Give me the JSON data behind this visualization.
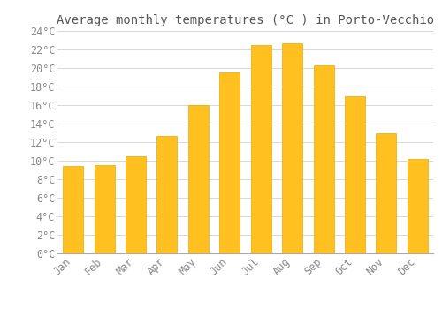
{
  "title": "Average monthly temperatures (°C ) in Porto-Vecchio",
  "months": [
    "Jan",
    "Feb",
    "Mar",
    "Apr",
    "May",
    "Jun",
    "Jul",
    "Aug",
    "Sep",
    "Oct",
    "Nov",
    "Dec"
  ],
  "values": [
    9.4,
    9.5,
    10.5,
    12.7,
    16.0,
    19.5,
    22.5,
    22.7,
    20.3,
    17.0,
    13.0,
    10.2
  ],
  "bar_color": "#FFC020",
  "bar_edge_color": "#E8A800",
  "background_color": "#FFFFFF",
  "grid_color": "#D8D8D8",
  "y_min": 0,
  "y_max": 24,
  "y_step": 2,
  "title_fontsize": 10,
  "tick_fontsize": 8.5,
  "font_family": "monospace",
  "title_color": "#555555",
  "tick_color": "#888888"
}
